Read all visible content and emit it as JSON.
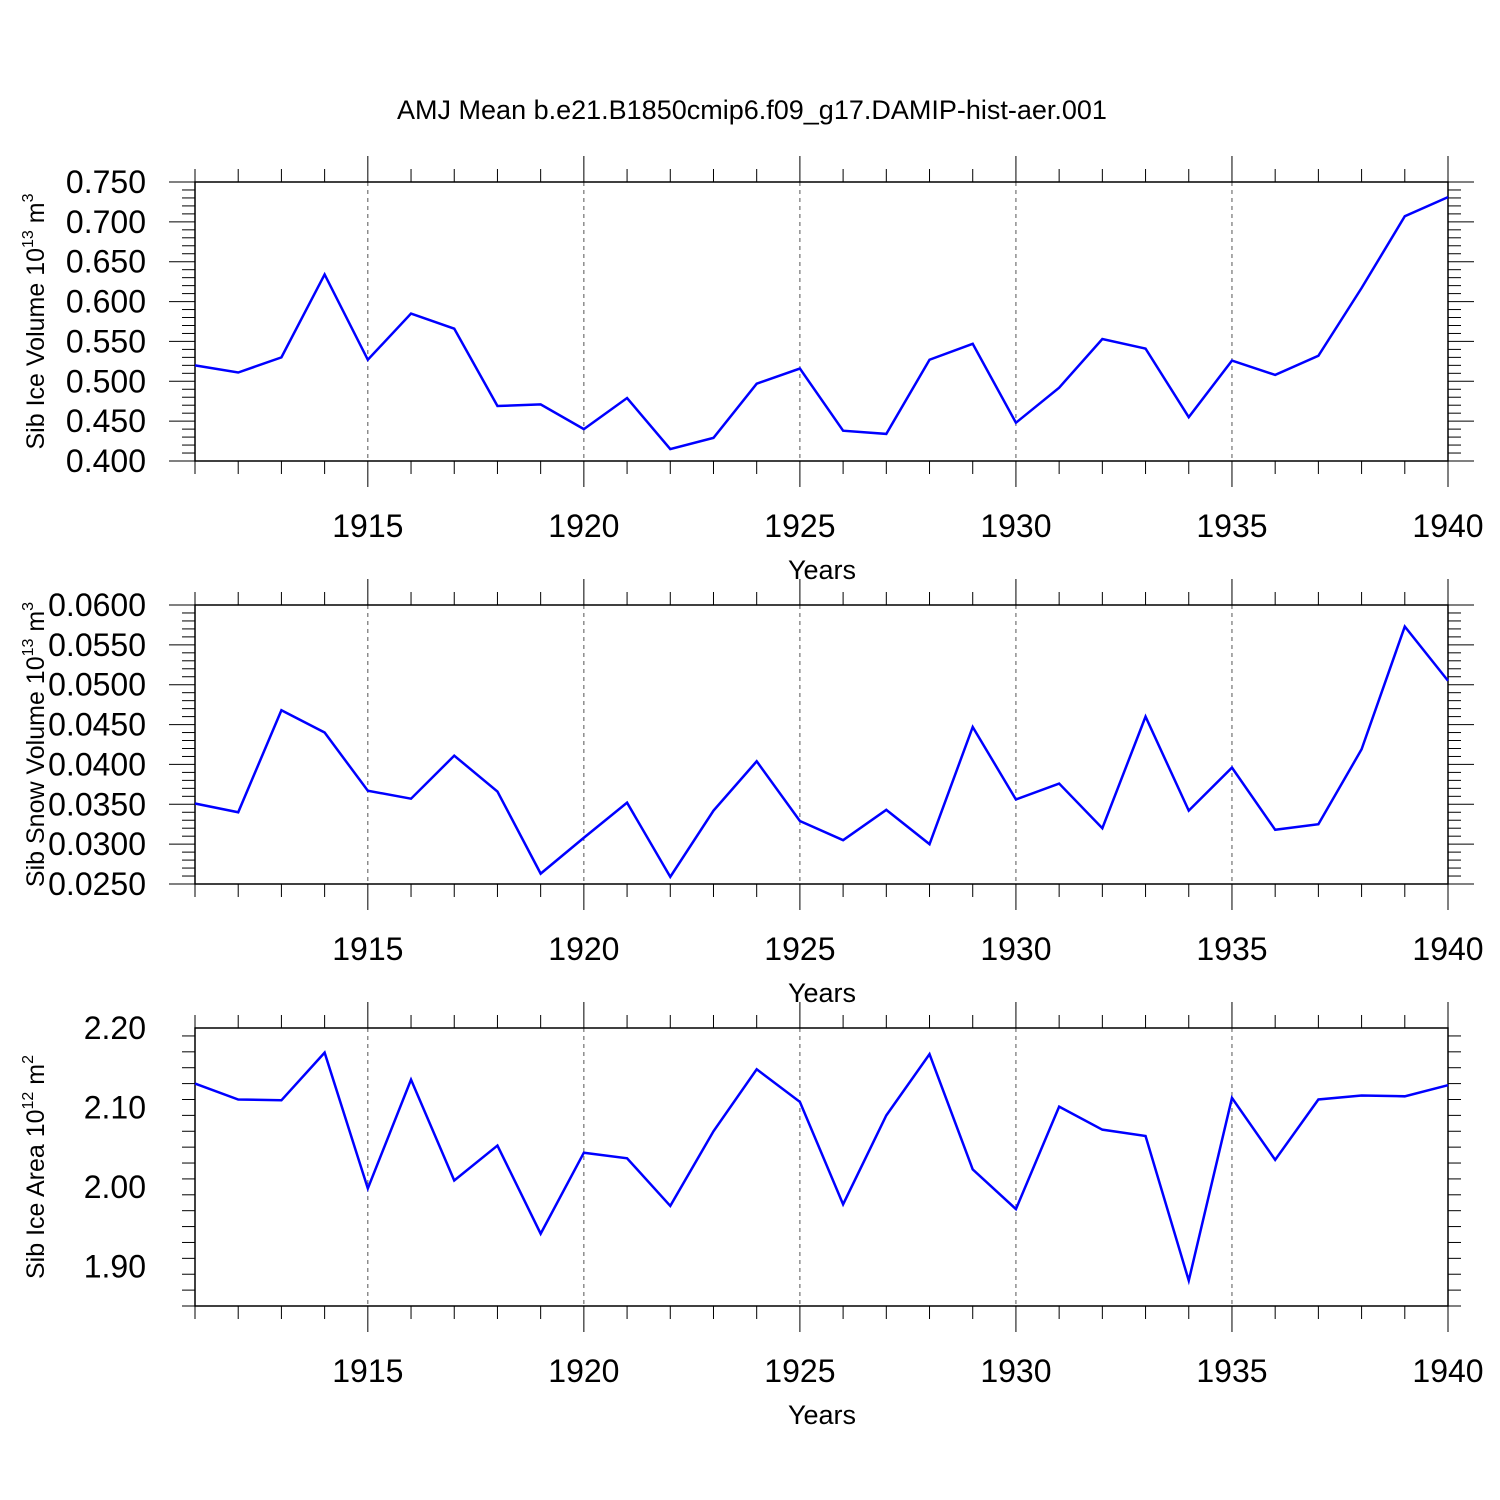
{
  "title": "AMJ Mean b.e21.B1850cmip6.f09_g17.DAMIP-hist-aer.001",
  "colors": {
    "line": "#0000ff",
    "axis": "#000000",
    "grid": "#555555",
    "background": "#ffffff"
  },
  "chart_data": [
    {
      "type": "line",
      "ylabel_main": "Sib Ice Volume 10",
      "ylabel_exp": "13",
      "ylabel_unit": " m",
      "ylabel_unit_exp": "3",
      "xlabel": "Years",
      "xlim": [
        1911,
        1940
      ],
      "ylim": [
        0.4,
        0.75
      ],
      "yticks": [
        0.4,
        0.45,
        0.5,
        0.55,
        0.6,
        0.65,
        0.7,
        0.75
      ],
      "ytick_labels": [
        "0.400",
        "0.450",
        "0.500",
        "0.550",
        "0.600",
        "0.650",
        "0.700",
        "0.750"
      ],
      "xticks": [
        1915,
        1920,
        1925,
        1930,
        1935,
        1940
      ],
      "xtick_labels": [
        "1915",
        "1920",
        "1925",
        "1930",
        "1935",
        "1940"
      ],
      "x": [
        1911,
        1912,
        1913,
        1914,
        1915,
        1916,
        1917,
        1918,
        1919,
        1920,
        1921,
        1922,
        1923,
        1924,
        1925,
        1926,
        1927,
        1928,
        1929,
        1930,
        1931,
        1932,
        1933,
        1934,
        1935,
        1936,
        1937,
        1938,
        1939,
        1940
      ],
      "series": [
        {
          "name": "Sib Ice Volume",
          "values": [
            0.52,
            0.511,
            0.53,
            0.634,
            0.527,
            0.585,
            0.566,
            0.469,
            0.471,
            0.44,
            0.479,
            0.415,
            0.429,
            0.497,
            0.516,
            0.438,
            0.434,
            0.527,
            0.547,
            0.448,
            0.492,
            0.553,
            0.541,
            0.455,
            0.526,
            0.508,
            0.532,
            0.617,
            0.707,
            0.731
          ]
        }
      ]
    },
    {
      "type": "line",
      "ylabel_main": "Sib Snow Volume 10",
      "ylabel_exp": "13",
      "ylabel_unit": " m",
      "ylabel_unit_exp": "3",
      "xlabel": "Years",
      "xlim": [
        1911,
        1940
      ],
      "ylim": [
        0.025,
        0.06
      ],
      "yticks": [
        0.025,
        0.03,
        0.035,
        0.04,
        0.045,
        0.05,
        0.055,
        0.06
      ],
      "ytick_labels": [
        "0.0250",
        "0.0300",
        "0.0350",
        "0.0400",
        "0.0450",
        "0.0500",
        "0.0550",
        "0.0600"
      ],
      "xticks": [
        1915,
        1920,
        1925,
        1930,
        1935,
        1940
      ],
      "xtick_labels": [
        "1915",
        "1920",
        "1925",
        "1930",
        "1935",
        "1940"
      ],
      "x": [
        1911,
        1912,
        1913,
        1914,
        1915,
        1916,
        1917,
        1918,
        1919,
        1920,
        1921,
        1922,
        1923,
        1924,
        1925,
        1926,
        1927,
        1928,
        1929,
        1930,
        1931,
        1932,
        1933,
        1934,
        1935,
        1936,
        1937,
        1938,
        1939,
        1940
      ],
      "series": [
        {
          "name": "Sib Snow Volume",
          "values": [
            0.0351,
            0.034,
            0.0468,
            0.044,
            0.0367,
            0.0357,
            0.0411,
            0.0366,
            0.0263,
            0.0308,
            0.0352,
            0.0259,
            0.0342,
            0.0404,
            0.0329,
            0.0305,
            0.0343,
            0.03,
            0.0447,
            0.0356,
            0.0376,
            0.032,
            0.046,
            0.0342,
            0.0396,
            0.0318,
            0.0325,
            0.0419,
            0.0573,
            0.0505
          ]
        }
      ]
    },
    {
      "type": "line",
      "ylabel_main": "Sib Ice Area 10",
      "ylabel_exp": "12",
      "ylabel_unit": " m",
      "ylabel_unit_exp": "2",
      "xlabel": "Years",
      "xlim": [
        1911,
        1940
      ],
      "ylim": [
        1.85,
        2.2
      ],
      "yticks": [
        1.9,
        2.0,
        2.1,
        2.2
      ],
      "ytick_labels": [
        "1.90",
        "2.00",
        "2.10",
        "2.20"
      ],
      "xticks": [
        1915,
        1920,
        1925,
        1930,
        1935,
        1940
      ],
      "xtick_labels": [
        "1915",
        "1920",
        "1925",
        "1930",
        "1935",
        "1940"
      ],
      "x": [
        1911,
        1912,
        1913,
        1914,
        1915,
        1916,
        1917,
        1918,
        1919,
        1920,
        1921,
        1922,
        1923,
        1924,
        1925,
        1926,
        1927,
        1928,
        1929,
        1930,
        1931,
        1932,
        1933,
        1934,
        1935,
        1936,
        1937,
        1938,
        1939,
        1940
      ],
      "series": [
        {
          "name": "Sib Ice Area",
          "values": [
            2.13,
            2.11,
            2.109,
            2.169,
            1.998,
            2.135,
            2.008,
            2.052,
            1.941,
            2.043,
            2.036,
            1.976,
            2.07,
            2.148,
            2.107,
            1.978,
            2.09,
            2.167,
            2.022,
            1.972,
            2.101,
            2.072,
            2.064,
            1.882,
            2.112,
            2.034,
            2.11,
            2.115,
            2.114,
            2.128
          ]
        }
      ]
    }
  ]
}
